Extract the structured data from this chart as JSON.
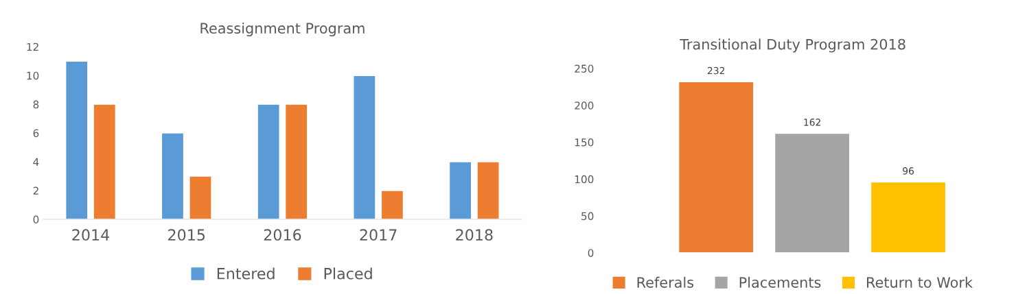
{
  "chart_data": [
    {
      "type": "bar",
      "title": "Reassignment Program",
      "categories": [
        "2014",
        "2015",
        "2016",
        "2017",
        "2018"
      ],
      "series": [
        {
          "name": "Entered",
          "color": "#5b9bd5",
          "values": [
            11,
            6,
            8,
            10,
            4
          ]
        },
        {
          "name": "Placed",
          "color": "#ed7d31",
          "values": [
            8,
            3,
            8,
            2,
            4
          ]
        }
      ],
      "ylim": [
        0,
        12
      ],
      "yticks": [
        0,
        2,
        4,
        6,
        8,
        10,
        12
      ],
      "grid": false,
      "legend": "bottom"
    },
    {
      "type": "bar",
      "title": "Transitional Duty Program 2018",
      "categories": [
        null,
        null,
        null
      ],
      "series": [
        {
          "name": "Referals",
          "color": "#ed7d31",
          "values": [
            232,
            null,
            null
          ]
        },
        {
          "name": "Placements",
          "color": "#a5a5a5",
          "values": [
            null,
            162,
            null
          ]
        },
        {
          "name": "Return to Work",
          "color": "#ffc000",
          "values": [
            null,
            null,
            96
          ]
        }
      ],
      "ylim": [
        0,
        250
      ],
      "yticks": [
        0,
        50,
        100,
        150,
        200,
        250
      ],
      "grid": false,
      "legend": "bottom",
      "data_labels": true,
      "tick_labels": "y"
    }
  ]
}
